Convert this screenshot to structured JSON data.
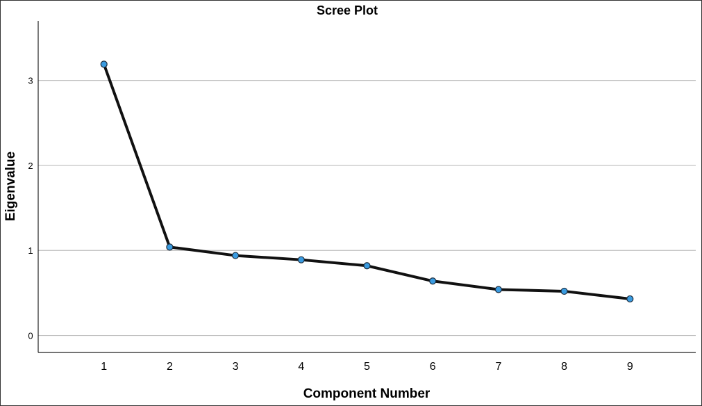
{
  "chart_data": {
    "type": "line",
    "title": "Scree Plot",
    "xlabel": "Component Number",
    "ylabel": "Eigenvalue",
    "x": [
      1,
      2,
      3,
      4,
      5,
      6,
      7,
      8,
      9
    ],
    "series": [
      {
        "values": [
          3.19,
          1.04,
          0.94,
          0.89,
          0.82,
          0.64,
          0.54,
          0.52,
          0.43
        ]
      }
    ],
    "xlim": [
      0,
      10
    ],
    "ylim": [
      -0.2,
      3.7
    ],
    "yticks": [
      0,
      1,
      2,
      3
    ],
    "xticks": [
      1,
      2,
      3,
      4,
      5,
      6,
      7,
      8,
      9
    ],
    "grid": "horizontal",
    "line_color": "#111111",
    "marker_color": "#3a9be0",
    "marker_edge_color": "#1a2a3a",
    "gridline_color": "#bdbdbd"
  }
}
